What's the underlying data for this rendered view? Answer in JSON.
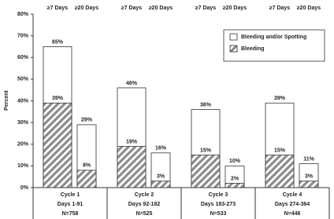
{
  "chart_data": {
    "type": "bar",
    "bar_mode": "overlay",
    "ylabel": "Percent",
    "categories": [
      "≥7 Days",
      "≥20 Days",
      "≥7 Days",
      "≥20 Days",
      "≥7 Days",
      "≥20 Days",
      "≥7 Days",
      "≥20 Days"
    ],
    "groups": [
      [
        "Cycle 1",
        "Days 1-91",
        "N=758"
      ],
      [
        "Cycle 2",
        "Days 92-182",
        "N=525"
      ],
      [
        "Cycle 3",
        "Days 183-273",
        "N=533"
      ],
      [
        "Cycle 4",
        "Days 274-364",
        "N=446"
      ]
    ],
    "series": [
      {
        "name": "Bleeding and/or Spotting",
        "color": "#ffffff",
        "values": [
          65,
          29,
          46,
          16,
          36,
          10,
          39,
          11
        ],
        "value_labels": [
          "65%",
          "29%",
          "46%",
          "16%",
          "36%",
          "10%",
          "39%",
          "11%"
        ]
      },
      {
        "name": "Bleeding",
        "color": "#8c8c8c",
        "hatched": true,
        "values": [
          39,
          8,
          19,
          3,
          15,
          2,
          15,
          3
        ],
        "value_labels": [
          "39%",
          "8%",
          "19%",
          "3%",
          "15%",
          "2%",
          "15%",
          "3%"
        ]
      }
    ],
    "ylim": [
      0,
      80
    ],
    "yticks": [
      {
        "value": 0,
        "label": "0%"
      },
      {
        "value": 10,
        "label": "10%"
      },
      {
        "value": 20,
        "label": "20%"
      },
      {
        "value": 30,
        "label": "30%"
      },
      {
        "value": 40,
        "label": "40%"
      },
      {
        "value": 50,
        "label": "50%"
      },
      {
        "value": 60,
        "label": "60%"
      },
      {
        "value": 70,
        "label": "70%"
      },
      {
        "value": 80,
        "label": "80%"
      }
    ],
    "legend": "upper right"
  }
}
